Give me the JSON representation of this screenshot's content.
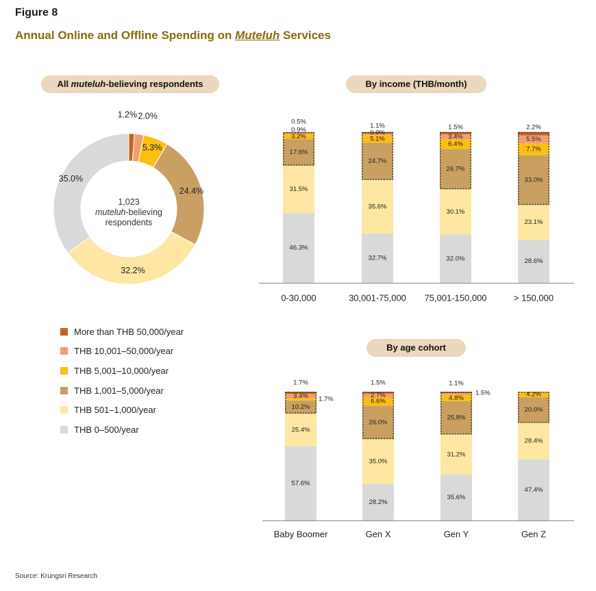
{
  "figure_label": "Figure 8",
  "title": {
    "prefix": "Annual Online and Offline Spending on ",
    "emph": "Muteluh",
    "suffix": " Services"
  },
  "donut_header": {
    "emph": "muteluh",
    "prefix": "All ",
    "suffix": "-believing respondents"
  },
  "income_header": "By income (THB/month)",
  "age_header": "By age cohort",
  "donut_center": {
    "count": "1,023",
    "emph": "muteluh",
    "line2_suffix": "-believing",
    "line3": "respondents"
  },
  "legend": [
    {
      "label": "More than THB 50,000/year",
      "color": "#c8601e"
    },
    {
      "label": "THB 10,001–50,000/year",
      "color": "#f0a070"
    },
    {
      "label": "THB 5,001–10,000/year",
      "color": "#fbbf12"
    },
    {
      "label": "THB 1,001–5,000/year",
      "color": "#c9a062"
    },
    {
      "label": "THB 501–1,000/year",
      "color": "#fde7a2"
    },
    {
      "label": "THB 0–500/year",
      "color": "#d9d9d9"
    }
  ],
  "source": "Source: Krungsri Research",
  "chart_data": [
    {
      "type": "pie",
      "title": "All muteluh-believing respondents",
      "categories": [
        "More than THB 50,000/year",
        "THB 10,001–50,000/year",
        "THB 5,001–10,000/year",
        "THB 1,001–5,000/year",
        "THB 501–1,000/year",
        "THB 0–500/year"
      ],
      "values": [
        1.2,
        2.0,
        5.3,
        24.4,
        32.2,
        35.0
      ],
      "labels": [
        "1.2%",
        "2.0%",
        "5.3%",
        "24.4%",
        "32.2%",
        "35.0%"
      ]
    },
    {
      "type": "bar",
      "stacked": true,
      "title": "By income (THB/month)",
      "categories": [
        "0-30,000",
        "30,001-75,000",
        "75,001-150,000",
        "> 150,000"
      ],
      "series": [
        {
          "name": "THB 0–500/year",
          "values": [
            46.3,
            32.7,
            32.0,
            28.6
          ],
          "labels": [
            "46.3%",
            "32.7%",
            "32.0%",
            "28.6%"
          ]
        },
        {
          "name": "THB 501–1,000/year",
          "values": [
            31.5,
            35.6,
            30.1,
            23.1
          ],
          "labels": [
            "31.5%",
            "35.6%",
            "30.1%",
            "23.1%"
          ]
        },
        {
          "name": "THB 1,001–5,000/year",
          "values": [
            17.6,
            24.7,
            26.7,
            33.0
          ],
          "labels": [
            "17.6%",
            "24.7%",
            "26.7%",
            "33.0%"
          ]
        },
        {
          "name": "THB 5,001–10,000/year",
          "values": [
            3.2,
            5.1,
            6.4,
            7.7
          ],
          "labels": [
            "3.2%",
            "5.1%",
            "6.4%",
            "7.7%"
          ]
        },
        {
          "name": "THB 10,001–50,000/year",
          "values": [
            0.9,
            0.9,
            3.4,
            5.5
          ],
          "labels": [
            "0.9%",
            "0.9%",
            "3.4%",
            "5.5%"
          ]
        },
        {
          "name": "More than THB 50,000/year",
          "values": [
            0.5,
            1.1,
            1.5,
            2.2
          ],
          "labels": [
            "0.5%",
            "1.1%",
            "1.5%",
            "2.2%"
          ]
        }
      ]
    },
    {
      "type": "bar",
      "stacked": true,
      "title": "By age cohort",
      "categories": [
        "Baby Boomer",
        "Gen X",
        "Gen Y",
        "Gen Z"
      ],
      "series": [
        {
          "name": "THB 0–500/year",
          "values": [
            57.6,
            28.2,
            35.6,
            47.4
          ],
          "labels": [
            "57.6%",
            "28.2%",
            "35.6%",
            "47.4%"
          ]
        },
        {
          "name": "THB 501–1,000/year",
          "values": [
            25.4,
            35.0,
            31.2,
            28.4
          ],
          "labels": [
            "25.4%",
            "35.0%",
            "31.2%",
            "28.4%"
          ]
        },
        {
          "name": "THB 1,001–5,000/year",
          "values": [
            10.2,
            26.0,
            25.8,
            20.0
          ],
          "labels": [
            "10.2%",
            "26.0%",
            "25.8%",
            "20.0%"
          ]
        },
        {
          "name": "THB 5,001–10,000/year",
          "values": [
            1.7,
            6.6,
            4.8,
            4.2
          ],
          "labels": [
            "1.7%",
            "6.6%",
            "4.8%",
            "4.2%"
          ]
        },
        {
          "name": "THB 10,001–50,000/year",
          "values": [
            3.4,
            2.7,
            1.5,
            0.0
          ],
          "labels": [
            "3.4%",
            "2.7%",
            "1.5%",
            ""
          ]
        },
        {
          "name": "More than THB 50,000/year",
          "values": [
            1.7,
            1.5,
            1.1,
            0.0
          ],
          "labels": [
            "1.7%",
            "1.5%",
            "1.1%",
            ""
          ]
        }
      ]
    }
  ]
}
